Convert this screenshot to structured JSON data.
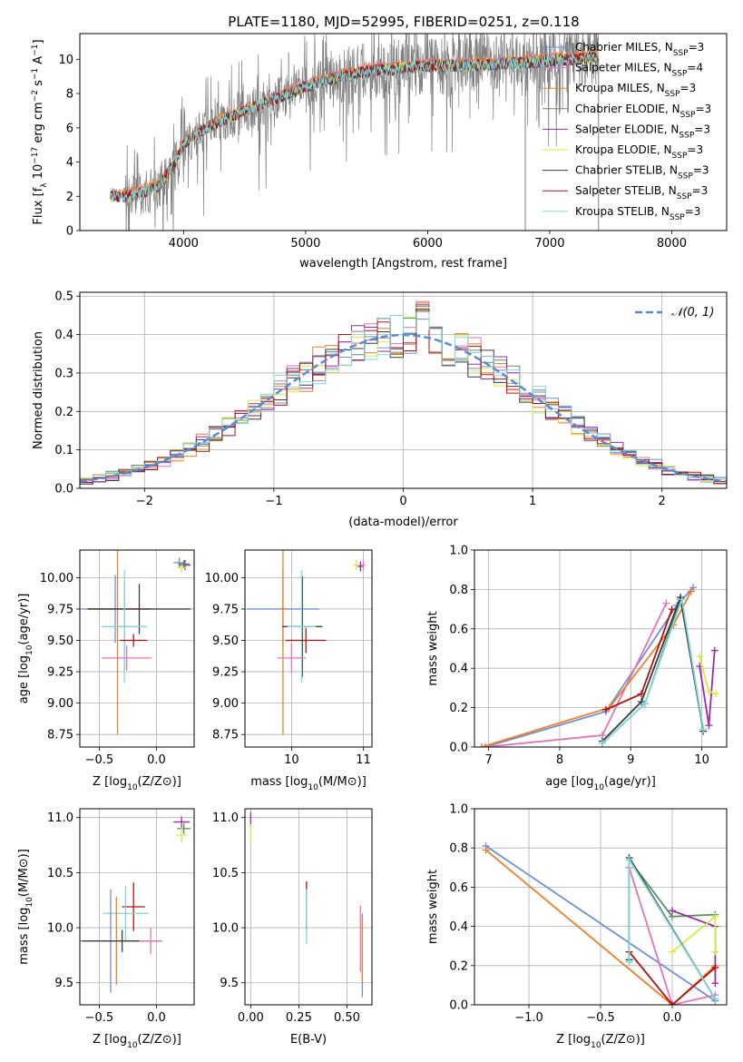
{
  "figure": {
    "title": "PLATE=1180, MJD=52995, FIBERID=0251, z=0.118"
  },
  "model_names": [
    "Chabrier MILES",
    "Salpeter MILES",
    "Kroupa MILES",
    "Chabrier ELODIE",
    "Salpeter ELODIE",
    "Kroupa ELODIE",
    "Chabrier STELIB",
    "Salpeter STELIB",
    "Kroupa STELIB"
  ],
  "colors": {
    "data": "#808080",
    "model": [
      "#6f8fdc",
      "#e673b8",
      "#f07f27",
      "#5e8f60",
      "#9a2aa8",
      "#d6ea42",
      "#3b3b3b",
      "#b21010",
      "#80d7d9"
    ],
    "gauss": "#5b8ad8"
  },
  "chart_data": [
    {
      "id": "spectrum",
      "type": "line",
      "xlabel": "wavelength [Angstrom, rest frame]",
      "ylabel": "Flux [f_λ 10^-17 erg cm^-2 s^-1 A^-1]",
      "xlim": [
        3150,
        8450
      ],
      "ylim": [
        0,
        11.5
      ],
      "xticks": [
        4000,
        5000,
        6000,
        7000,
        8000
      ],
      "yticks": [
        0,
        2,
        4,
        6,
        8,
        10
      ],
      "grid": false,
      "legend": {
        "position": "top-right",
        "entries": [
          "Chabrier MILES, N_SSP=3",
          "Salpeter MILES, N_SSP=4",
          "Kroupa MILES, N_SSP=3",
          "Chabrier ELODIE, N_SSP=3",
          "Salpeter ELODIE, N_SSP=3",
          "Kroupa ELODIE, N_SSP=3",
          "Chabrier STELIB, N_SSP=3",
          "Salpeter STELIB, N_SSP=3",
          "Kroupa STELIB, N_SSP=3"
        ]
      },
      "continuum": {
        "x": [
          3400,
          3550,
          3700,
          3800,
          3950,
          4000,
          4100,
          4300,
          4500,
          4800,
          5000,
          5200,
          5500,
          5800,
          6000,
          6200,
          6500,
          6800,
          7000,
          7200,
          7400
        ],
        "y": [
          2.0,
          2.0,
          2.3,
          2.6,
          4.2,
          5.0,
          5.6,
          6.4,
          7.0,
          7.8,
          8.4,
          8.8,
          9.3,
          9.5,
          9.6,
          9.6,
          9.7,
          9.8,
          9.9,
          10.0,
          10.1
        ]
      },
      "model_range": [
        3400,
        7400
      ],
      "data_range": [
        3520,
        7400
      ],
      "emission_lines": [
        {
          "x": 4861,
          "y": 10.4
        },
        {
          "x": 6563,
          "y": 11.3
        },
        {
          "x": 5007,
          "y": 9.8
        }
      ]
    },
    {
      "id": "residuals",
      "type": "step-histogram",
      "xlabel": "(data-model)/error",
      "ylabel": "Normed distribution",
      "xlim": [
        -2.5,
        2.5
      ],
      "ylim": [
        0,
        0.51
      ],
      "xticks": [
        -2,
        -1,
        0,
        1,
        2
      ],
      "yticks": [
        0.0,
        0.1,
        0.2,
        0.3,
        0.4,
        0.5
      ],
      "grid": true,
      "bin_width": 0.1,
      "legend": {
        "position": "top-right",
        "entries": [
          "𝒩(0, 1)"
        ]
      },
      "gaussian": {
        "mean": 0,
        "sigma": 1
      }
    },
    {
      "id": "age-vs-Z",
      "type": "errorbar",
      "xlabel": "Z [log10(Z/Z⊙)]",
      "ylabel": "age  [log10(age/yr)]",
      "xlim": [
        -0.67,
        0.33
      ],
      "ylim": [
        8.65,
        10.22
      ],
      "xticks": [
        -0.5,
        0.0
      ],
      "yticks": [
        8.75,
        9.0,
        9.25,
        9.5,
        9.75,
        10.0
      ],
      "grid": true,
      "points": [
        {
          "s": 0,
          "x": 0.2,
          "y": 10.12,
          "xe": 0.05,
          "ye": 0.04
        },
        {
          "s": 4,
          "x": 0.25,
          "y": 10.1,
          "xe": 0.05,
          "ye": 0.04
        },
        {
          "s": 5,
          "x": 0.22,
          "y": 10.08,
          "xe": 0.04,
          "ye": 0.04
        },
        {
          "s": 3,
          "x": 0.24,
          "y": 10.11,
          "xe": 0.05,
          "ye": 0.03
        },
        {
          "s": 0,
          "x": -0.36,
          "y": 9.75,
          "xe": 0.3,
          "ye": 0.27
        },
        {
          "s": 2,
          "x": -0.34,
          "y": 9.75,
          "xe": 0.28,
          "ye": 1.0
        },
        {
          "s": 6,
          "x": -0.15,
          "y": 9.75,
          "xe": 0.45,
          "ye": 0.2
        },
        {
          "s": 3,
          "x": -0.28,
          "y": 9.61,
          "xe": 0.05,
          "ye": 0.35
        },
        {
          "s": 8,
          "x": -0.28,
          "y": 9.61,
          "xe": 0.2,
          "ye": 0.45
        },
        {
          "s": 7,
          "x": -0.2,
          "y": 9.5,
          "xe": 0.12,
          "ye": 0.05
        },
        {
          "s": 1,
          "x": -0.26,
          "y": 9.36,
          "xe": 0.22,
          "ye": 0.1
        }
      ]
    },
    {
      "id": "age-vs-mass",
      "type": "errorbar",
      "xlabel": "mass [log10(M/M⊙)]",
      "ylabel": "",
      "xlim": [
        9.35,
        11.12
      ],
      "ylim": [
        8.65,
        10.22
      ],
      "xticks": [
        10,
        11
      ],
      "yticks": [
        8.75,
        9.0,
        9.25,
        9.5,
        9.75,
        10.0
      ],
      "grid": true,
      "points": [
        {
          "s": 5,
          "x": 10.9,
          "y": 10.1,
          "xe": 0.05,
          "ye": 0.04
        },
        {
          "s": 4,
          "x": 10.96,
          "y": 10.09,
          "xe": 0.04,
          "ye": 0.04
        },
        {
          "s": 1,
          "x": 11.0,
          "y": 10.1,
          "xe": 0.03,
          "ye": 0.04
        },
        {
          "s": 0,
          "x": 9.88,
          "y": 9.75,
          "xe": 0.5,
          "ye": 0.3
        },
        {
          "s": 2,
          "x": 9.88,
          "y": 9.75,
          "xe": 0.05,
          "ye": 1.0
        },
        {
          "s": 6,
          "x": 10.15,
          "y": 9.61,
          "xe": 0.28,
          "ye": 0.4
        },
        {
          "s": 8,
          "x": 10.14,
          "y": 9.61,
          "xe": 0.2,
          "ye": 0.45
        },
        {
          "s": 7,
          "x": 10.2,
          "y": 9.5,
          "xe": 0.28,
          "ye": 0.1
        },
        {
          "s": 1,
          "x": 10.0,
          "y": 9.36,
          "xe": 0.2,
          "ye": 0.12
        }
      ]
    },
    {
      "id": "weight-vs-age",
      "type": "line",
      "xlabel": "age  [log10(age/yr)]",
      "ylabel": "mass weight",
      "xlim": [
        6.8,
        10.35
      ],
      "ylim": [
        0,
        1
      ],
      "xticks": [
        7,
        8,
        9,
        10
      ],
      "yticks": [
        0.0,
        0.2,
        0.4,
        0.6,
        0.8,
        1.0
      ],
      "grid": true,
      "series": [
        {
          "s": 0,
          "x": [
            6.95,
            8.65,
            9.65,
            9.88
          ],
          "y": [
            0.0,
            0.18,
            0.72,
            0.81
          ]
        },
        {
          "s": 1,
          "x": [
            6.95,
            8.6,
            9.5
          ],
          "y": [
            0.0,
            0.06,
            0.73
          ]
        },
        {
          "s": 2,
          "x": [
            6.9,
            8.7,
            9.6,
            9.85
          ],
          "y": [
            0.0,
            0.2,
            0.62,
            0.79
          ]
        },
        {
          "s": 3,
          "x": [
            8.6,
            9.2,
            9.7,
            10.02
          ],
          "y": [
            0.02,
            0.22,
            0.75,
            0.09
          ]
        },
        {
          "s": 4,
          "x": [
            9.97,
            10.1,
            10.18
          ],
          "y": [
            0.41,
            0.11,
            0.49
          ]
        },
        {
          "s": 5,
          "x": [
            9.97,
            10.1,
            10.2
          ],
          "y": [
            0.46,
            0.28,
            0.27
          ]
        },
        {
          "s": 6,
          "x": [
            8.6,
            9.15,
            9.7,
            10.02
          ],
          "y": [
            0.03,
            0.23,
            0.76,
            0.08
          ]
        },
        {
          "s": 7,
          "x": [
            8.65,
            9.15,
            9.58
          ],
          "y": [
            0.19,
            0.27,
            0.7
          ]
        },
        {
          "s": 8,
          "x": [
            8.6,
            9.2,
            9.72,
            10.02
          ],
          "y": [
            0.02,
            0.22,
            0.75,
            0.09
          ]
        }
      ]
    },
    {
      "id": "mass-vs-Z",
      "type": "errorbar",
      "xlabel": "Z [log10(Z/Z⊙)]",
      "ylabel": "mass [log10(M/M⊙)]",
      "xlim": [
        -0.67,
        0.33
      ],
      "ylim": [
        9.3,
        11.08
      ],
      "xticks": [
        -0.5,
        0.0
      ],
      "yticks": [
        9.5,
        10.0,
        10.5,
        11.0
      ],
      "grid": true,
      "points": [
        {
          "s": 4,
          "x": 0.22,
          "y": 10.96,
          "xe": 0.07,
          "ye": 0.05
        },
        {
          "s": 3,
          "x": 0.24,
          "y": 10.9,
          "xe": 0.06,
          "ye": 0.05
        },
        {
          "s": 5,
          "x": 0.22,
          "y": 10.84,
          "xe": 0.05,
          "ye": 0.07
        },
        {
          "s": 7,
          "x": -0.2,
          "y": 10.19,
          "xe": 0.1,
          "ye": 0.22
        },
        {
          "s": 8,
          "x": -0.27,
          "y": 10.13,
          "xe": 0.2,
          "ye": 0.25
        },
        {
          "s": 0,
          "x": -0.4,
          "y": 9.88,
          "xe": 0.3,
          "ye": 0.47
        },
        {
          "s": 2,
          "x": -0.35,
          "y": 9.88,
          "xe": 0.3,
          "ye": 0.4
        },
        {
          "s": 6,
          "x": -0.3,
          "y": 9.88,
          "xe": 0.35,
          "ye": 0.1
        },
        {
          "s": 1,
          "x": -0.05,
          "y": 9.88,
          "xe": 0.1,
          "ye": 0.12
        }
      ]
    },
    {
      "id": "mass-vs-EBV",
      "type": "errorbar",
      "xlabel": "E(B-V)",
      "ylabel": "",
      "xlim": [
        -0.03,
        0.63
      ],
      "ylim": [
        9.3,
        11.08
      ],
      "xticks": [
        0.0,
        0.25,
        0.5
      ],
      "yticks": [
        9.5,
        10.0,
        10.5,
        11.0
      ],
      "grid": true,
      "points": [
        {
          "s": 4,
          "x": 0.0,
          "y": 10.98,
          "xe": 0,
          "ye": 0.07
        },
        {
          "s": 5,
          "x": 0.0,
          "y": 10.86,
          "xe": 0,
          "ye": 0.08
        },
        {
          "s": 7,
          "x": 0.29,
          "y": 10.2,
          "xe": 0,
          "ye": 0.22
        },
        {
          "s": 8,
          "x": 0.29,
          "y": 10.1,
          "xe": 0,
          "ye": 0.25
        },
        {
          "s": 1,
          "x": 0.57,
          "y": 9.9,
          "xe": 0,
          "ye": 0.3
        },
        {
          "s": 0,
          "x": 0.58,
          "y": 9.75,
          "xe": 0,
          "ye": 0.38
        },
        {
          "s": 2,
          "x": 0.58,
          "y": 9.8,
          "xe": 0,
          "ye": 0.3
        }
      ]
    },
    {
      "id": "weight-vs-Z",
      "type": "line",
      "xlabel": "Z [log10(Z/Z⊙)]",
      "ylabel": "mass weight",
      "xlim": [
        -1.38,
        0.38
      ],
      "ylim": [
        0,
        1
      ],
      "xticks": [
        -1.0,
        -0.5,
        0.0
      ],
      "yticks": [
        0.0,
        0.2,
        0.4,
        0.6,
        0.8,
        1.0
      ],
      "grid": true,
      "series": [
        {
          "s": 0,
          "x": [
            -1.3,
            0.3
          ],
          "y": [
            0.81,
            0.02
          ]
        },
        {
          "s": 2,
          "x": [
            -1.3,
            0.0,
            0.3
          ],
          "y": [
            0.79,
            0.0,
            0.2
          ]
        },
        {
          "s": 1,
          "x": [
            -0.3,
            0.0,
            0.3
          ],
          "y": [
            0.7,
            0.0,
            0.05
          ]
        },
        {
          "s": 3,
          "x": [
            -0.3,
            -0.3,
            0.0,
            0.3
          ],
          "y": [
            0.22,
            0.74,
            0.45,
            0.46
          ]
        },
        {
          "s": 4,
          "x": [
            0.0,
            0.3,
            0.3
          ],
          "y": [
            0.48,
            0.4,
            0.11
          ]
        },
        {
          "s": 5,
          "x": [
            0.0,
            0.3,
            0.3
          ],
          "y": [
            0.27,
            0.45,
            0.27
          ]
        },
        {
          "s": 6,
          "x": [
            -0.3,
            -0.3,
            0.3
          ],
          "y": [
            0.23,
            0.75,
            0.03
          ]
        },
        {
          "s": 7,
          "x": [
            -0.3,
            0.0,
            0.3
          ],
          "y": [
            0.27,
            0.0,
            0.19
          ]
        },
        {
          "s": 8,
          "x": [
            -0.3,
            -0.3,
            0.3
          ],
          "y": [
            0.22,
            0.74,
            0.03
          ]
        }
      ]
    }
  ]
}
